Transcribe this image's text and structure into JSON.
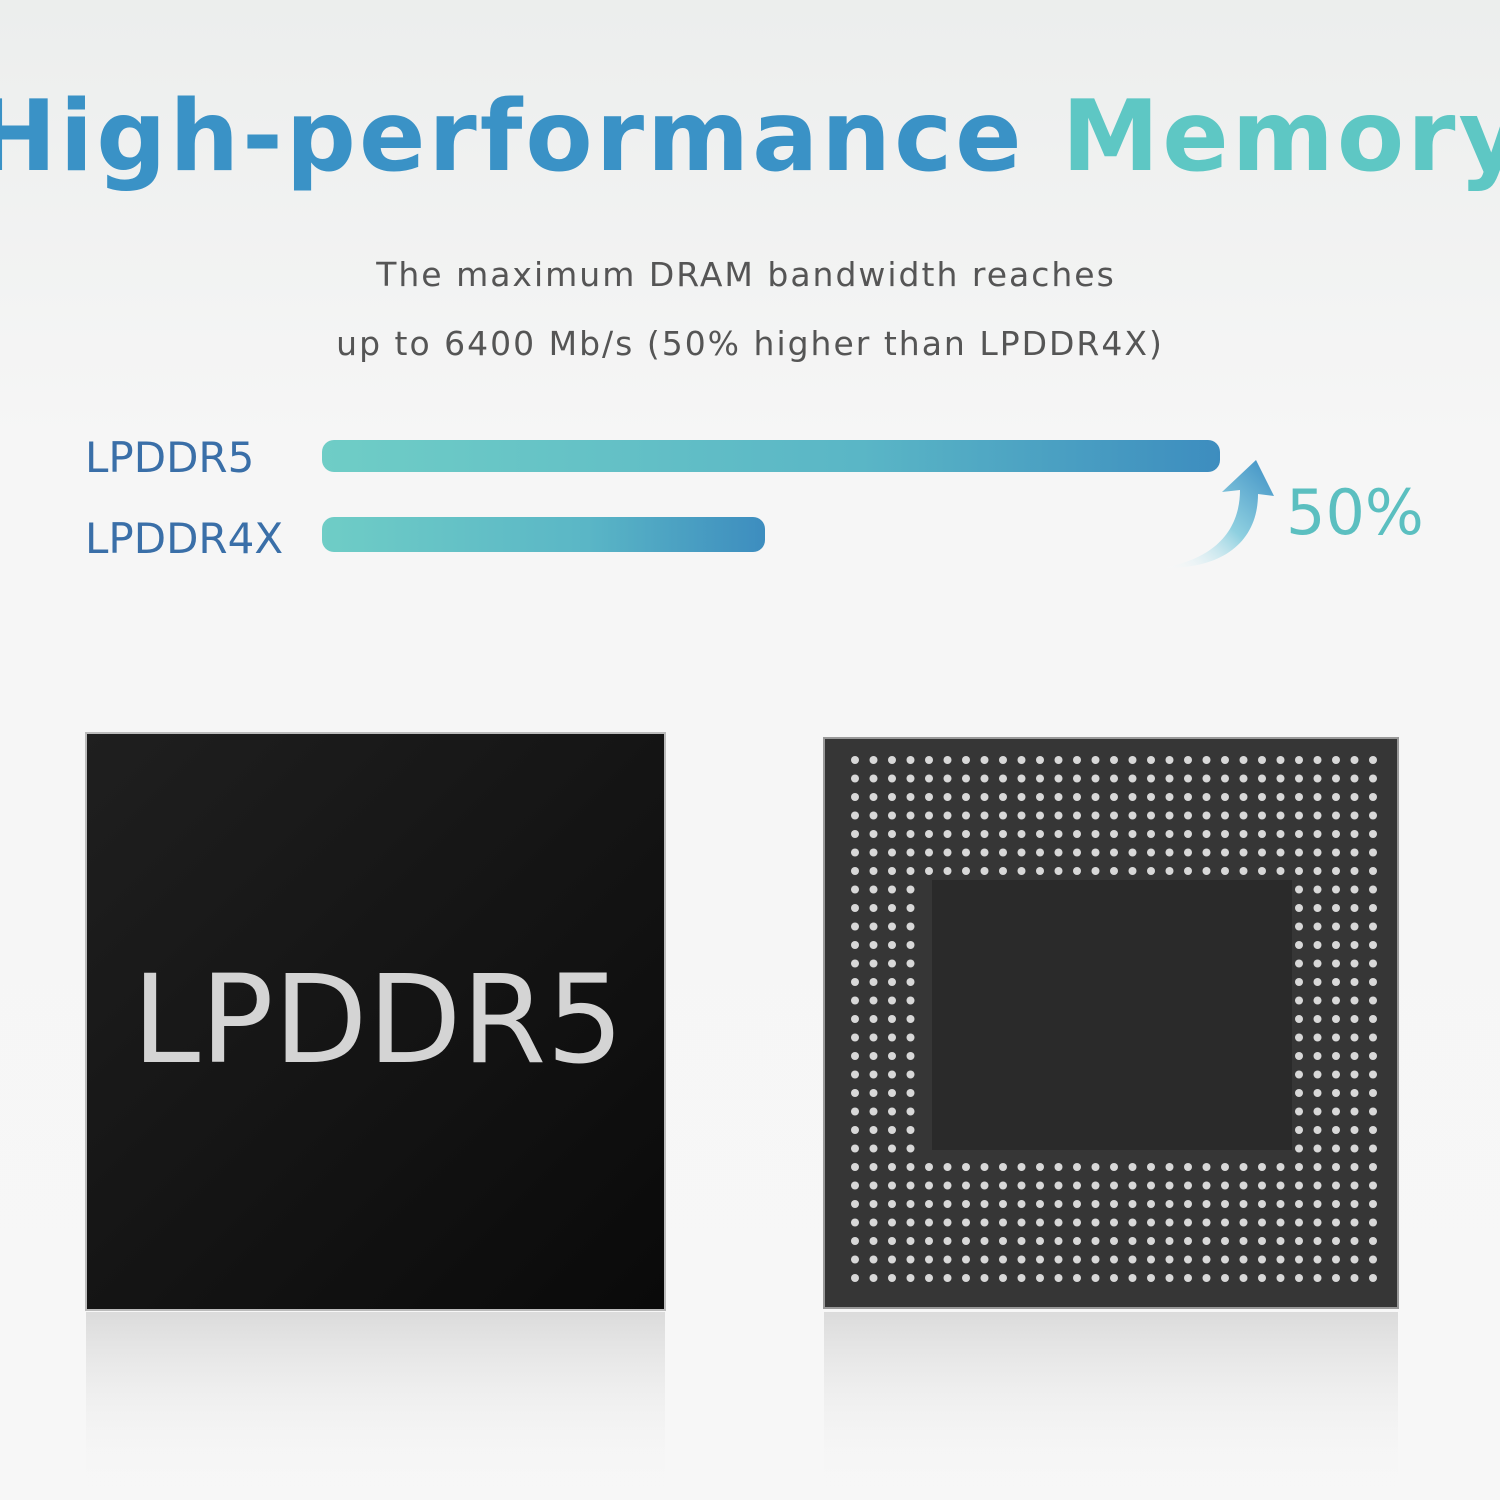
{
  "title": {
    "part1": "High-performance",
    "part2": "Memory"
  },
  "subtitle": [
    "The maximum DRAM bandwidth reaches",
    "up to 6400 Mb/s (50% higher than LPDDR4X)"
  ],
  "comparison": {
    "labels": [
      "LPDDR5",
      "LPDDR4X"
    ],
    "increase": "50%"
  },
  "chip_label": "LPDDR5"
}
